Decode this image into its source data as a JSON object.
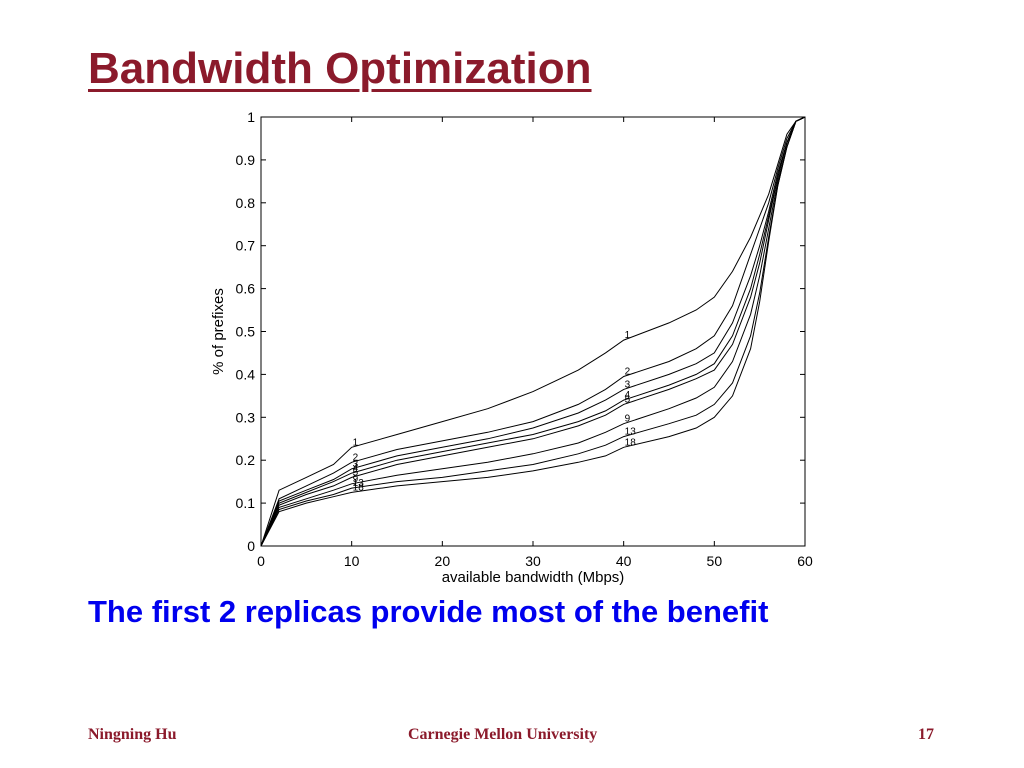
{
  "slide": {
    "title": "Bandwidth Optimization",
    "body": "The first 2 replicas provide most of the benefit",
    "footer_left": "Ningning Hu",
    "footer_center": "Carnegie Mellon University",
    "footer_right": "17"
  },
  "chart_data": {
    "type": "line",
    "title": "",
    "xlabel": "available bandwidth (Mbps)",
    "ylabel": "% of prefixes",
    "xlim": [
      0,
      60
    ],
    "ylim": [
      0,
      1
    ],
    "xticks": [
      0,
      10,
      20,
      30,
      40,
      50,
      60
    ],
    "yticks": [
      0,
      0.1,
      0.2,
      0.3,
      0.4,
      0.5,
      0.6,
      0.7,
      0.8,
      0.9,
      1
    ],
    "grid": false,
    "line_color": "#000000",
    "x": [
      0,
      2,
      5,
      8,
      10,
      15,
      20,
      25,
      30,
      35,
      38,
      40,
      45,
      48,
      50,
      52,
      54,
      55,
      56,
      57,
      58,
      59,
      60
    ],
    "series": [
      {
        "name": "1",
        "label_at": 40,
        "values": [
          0,
          0.13,
          0.16,
          0.19,
          0.23,
          0.26,
          0.29,
          0.32,
          0.36,
          0.41,
          0.45,
          0.48,
          0.52,
          0.55,
          0.58,
          0.64,
          0.72,
          0.77,
          0.82,
          0.89,
          0.96,
          0.99,
          1.0
        ]
      },
      {
        "name": "2",
        "label_at": 40,
        "values": [
          0,
          0.11,
          0.14,
          0.17,
          0.195,
          0.225,
          0.245,
          0.265,
          0.29,
          0.33,
          0.365,
          0.395,
          0.43,
          0.46,
          0.49,
          0.56,
          0.68,
          0.74,
          0.8,
          0.88,
          0.95,
          0.99,
          1.0
        ]
      },
      {
        "name": "3",
        "label_at": 40,
        "values": [
          0,
          0.105,
          0.13,
          0.155,
          0.18,
          0.21,
          0.23,
          0.25,
          0.275,
          0.31,
          0.34,
          0.365,
          0.4,
          0.425,
          0.45,
          0.52,
          0.63,
          0.7,
          0.78,
          0.87,
          0.94,
          0.99,
          1.0
        ]
      },
      {
        "name": "4",
        "label_at": 40,
        "values": [
          0,
          0.1,
          0.125,
          0.15,
          0.17,
          0.2,
          0.22,
          0.24,
          0.26,
          0.29,
          0.315,
          0.34,
          0.375,
          0.4,
          0.425,
          0.49,
          0.6,
          0.68,
          0.77,
          0.86,
          0.94,
          0.99,
          1.0
        ]
      },
      {
        "name": "5",
        "label_at": 40,
        "values": [
          0,
          0.095,
          0.12,
          0.14,
          0.16,
          0.19,
          0.21,
          0.23,
          0.25,
          0.28,
          0.305,
          0.33,
          0.365,
          0.39,
          0.41,
          0.47,
          0.58,
          0.66,
          0.76,
          0.86,
          0.94,
          0.99,
          1.0
        ]
      },
      {
        "name": "9",
        "label_at": 40,
        "values": [
          0,
          0.09,
          0.11,
          0.13,
          0.145,
          0.165,
          0.18,
          0.195,
          0.215,
          0.24,
          0.265,
          0.285,
          0.32,
          0.345,
          0.37,
          0.43,
          0.54,
          0.63,
          0.74,
          0.85,
          0.93,
          0.99,
          1.0
        ]
      },
      {
        "name": "13",
        "label_at": 40,
        "values": [
          0,
          0.085,
          0.105,
          0.12,
          0.135,
          0.15,
          0.16,
          0.175,
          0.19,
          0.215,
          0.235,
          0.255,
          0.285,
          0.305,
          0.33,
          0.38,
          0.49,
          0.59,
          0.72,
          0.84,
          0.93,
          0.99,
          1.0
        ]
      },
      {
        "name": "18",
        "label_at": 40,
        "values": [
          0,
          0.08,
          0.1,
          0.115,
          0.125,
          0.14,
          0.15,
          0.16,
          0.175,
          0.195,
          0.21,
          0.23,
          0.255,
          0.275,
          0.3,
          0.35,
          0.46,
          0.57,
          0.71,
          0.84,
          0.93,
          0.99,
          1.0
        ]
      }
    ]
  }
}
